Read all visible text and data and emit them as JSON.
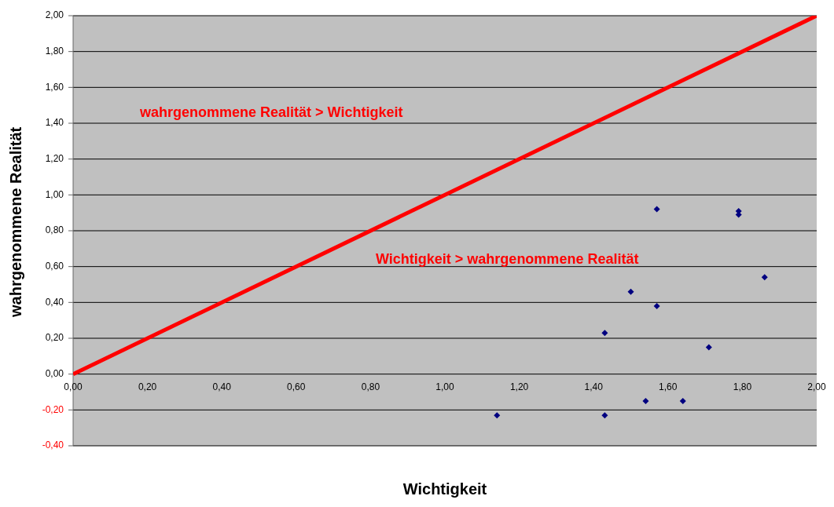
{
  "chart_data": {
    "type": "scatter",
    "xlabel": "Wichtigkeit",
    "ylabel": "wahrgenommene Realität",
    "series": [
      {
        "color": "#000080",
        "marker": "diamond",
        "x": [
          1.14,
          1.43,
          1.43,
          1.5,
          1.57,
          1.57,
          1.54,
          1.64,
          1.71,
          1.79,
          1.79,
          1.86
        ],
        "values": [
          -0.23,
          0.23,
          -0.23,
          0.46,
          0.92,
          0.38,
          -0.15,
          -0.15,
          0.15,
          0.91,
          0.89,
          0.54
        ]
      },
      {
        "type": "line",
        "color": "#ff0000",
        "x": [
          0,
          2
        ],
        "values": [
          0,
          2
        ]
      }
    ],
    "xlim": [
      0,
      2
    ],
    "ylim": [
      -0.4,
      2
    ],
    "xticks": [
      {
        "value": 0,
        "label": "0,00"
      },
      {
        "value": 0.2,
        "label": "0,20"
      },
      {
        "value": 0.4,
        "label": "0,40"
      },
      {
        "value": 0.6,
        "label": "0,60"
      },
      {
        "value": 0.8,
        "label": "0,80"
      },
      {
        "value": 1,
        "label": "1,00"
      },
      {
        "value": 1.2,
        "label": "1,20"
      },
      {
        "value": 1.4,
        "label": "1,40"
      },
      {
        "value": 1.6,
        "label": "1,60"
      },
      {
        "value": 1.8,
        "label": "1,80"
      },
      {
        "value": 2,
        "label": "2,00"
      }
    ],
    "yticks": [
      {
        "value": -0.4,
        "label": "-0,40"
      },
      {
        "value": -0.2,
        "label": "-0,20"
      },
      {
        "value": 0,
        "label": "0,00"
      },
      {
        "value": 0.2,
        "label": "0,20"
      },
      {
        "value": 0.4,
        "label": "0,40"
      },
      {
        "value": 0.6,
        "label": "0,60"
      },
      {
        "value": 0.8,
        "label": "0,80"
      },
      {
        "value": 1,
        "label": "1,00"
      },
      {
        "value": 1.2,
        "label": "1,20"
      },
      {
        "value": 1.4,
        "label": "1,40"
      },
      {
        "value": 1.6,
        "label": "1,60"
      },
      {
        "value": 1.8,
        "label": "1,80"
      },
      {
        "value": 2,
        "label": "2,00"
      }
    ],
    "grid": "y",
    "legend": false,
    "annotations": [
      "wahrgenommene Realität > Wichtigkeit",
      "Wichtigkeit > wahrgenommene Realität"
    ]
  }
}
